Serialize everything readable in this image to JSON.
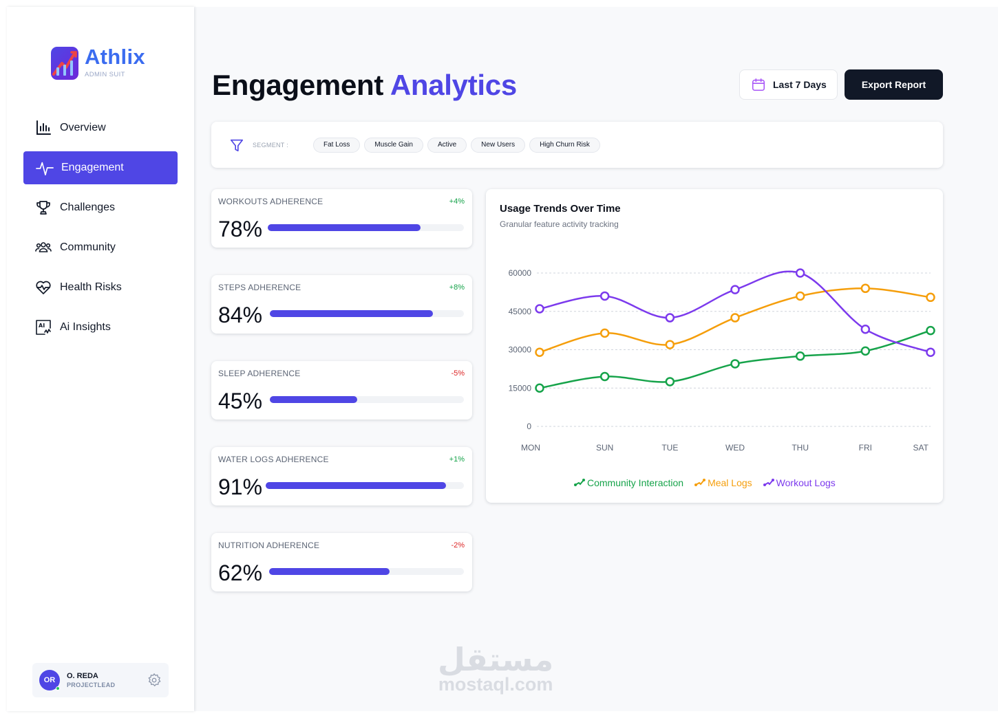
{
  "brand": {
    "name": "Athlix",
    "subtitle": "ADMIN SUIT",
    "accent": "#4f46e5"
  },
  "sidebar": {
    "items": [
      {
        "label": "Overview",
        "icon": "bar-chart-icon",
        "active": false
      },
      {
        "label": "Engagement",
        "icon": "activity-pulse-icon",
        "active": true
      },
      {
        "label": "Challenges",
        "icon": "trophy-icon",
        "active": false
      },
      {
        "label": "Community",
        "icon": "users-group-icon",
        "active": false
      },
      {
        "label": "Health Risks",
        "icon": "heart-pulse-icon",
        "active": false
      },
      {
        "label": "Ai Insights",
        "icon": "ai-chart-icon",
        "active": false
      }
    ],
    "user": {
      "initials": "OR",
      "name": "O. REDA",
      "role": "PROJECTLEAD"
    }
  },
  "header": {
    "title_plain": "Engagement",
    "title_accent": "Analytics",
    "date_range": "Last 7 Days",
    "export_label": "Export Report"
  },
  "segment": {
    "label": "SEGMENT :",
    "chips": [
      "Fat Loss",
      "Muscle Gain",
      "Active",
      "New Users",
      "High Churn Risk"
    ]
  },
  "adherence": [
    {
      "title": "WORKOUTS ADHERENCE",
      "value": "78%",
      "delta": "+4%",
      "trend": "up",
      "fill": 0.78
    },
    {
      "title": "STEPS ADHERENCE",
      "value": "84%",
      "delta": "+8%",
      "trend": "up",
      "fill": 0.84
    },
    {
      "title": "SLEEP ADHERENCE",
      "value": "45%",
      "delta": "-5%",
      "trend": "down",
      "fill": 0.45
    },
    {
      "title": "WATER LOGS ADHERENCE",
      "value": "91%",
      "delta": "+1%",
      "trend": "up",
      "fill": 0.91
    },
    {
      "title": "NUTRITION ADHERENCE",
      "value": "62%",
      "delta": "-2%",
      "trend": "down",
      "fill": 0.62
    }
  ],
  "colors": {
    "community": "#16a34a",
    "meal": "#f59e0b",
    "workout": "#7c3aed",
    "up": "#16a34a",
    "down": "#dc2626"
  },
  "chart_data": {
    "type": "line",
    "title": "Usage Trends Over Time",
    "subtitle": "Granular feature activity tracking",
    "categories": [
      "MON",
      "SUN",
      "TUE",
      "WED",
      "THU",
      "FRI",
      "SAT"
    ],
    "y_ticks": [
      "0",
      "15000",
      "30000",
      "45000",
      "60000"
    ],
    "ylim": [
      0,
      60000
    ],
    "grid": true,
    "legend_position": "bottom",
    "series": [
      {
        "name": "Community Interaction",
        "color": "#16a34a",
        "values": [
          15000,
          19500,
          17500,
          24500,
          27500,
          29500,
          37500
        ]
      },
      {
        "name": "Meal Logs",
        "color": "#f59e0b",
        "values": [
          29000,
          36500,
          32000,
          42500,
          51000,
          54000,
          50500
        ]
      },
      {
        "name": "Workout Logs",
        "color": "#7c3aed",
        "values": [
          46000,
          51000,
          42500,
          53500,
          60000,
          38000,
          29000
        ]
      }
    ]
  },
  "watermark": {
    "arabic": "مستقل",
    "latin": "mostaql.com"
  }
}
